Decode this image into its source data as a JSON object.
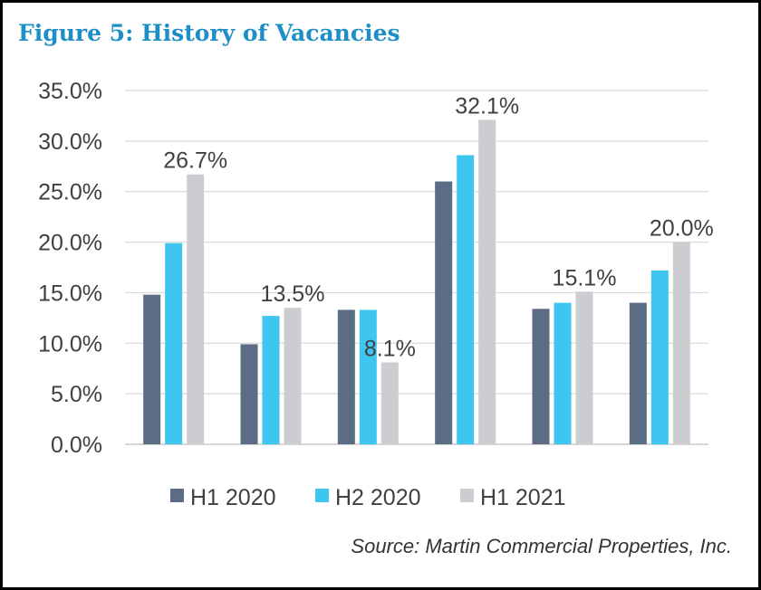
{
  "title": "Figure 5: History of Vacancies",
  "source": "Source: Martin Commercial Properties, Inc.",
  "chart_data": {
    "type": "bar",
    "categories": [
      "",
      "",
      "",
      "",
      "",
      ""
    ],
    "series": [
      {
        "name": "H1 2020",
        "color": "#5c6c85",
        "values": [
          14.8,
          9.9,
          13.3,
          26.0,
          13.4,
          14.0
        ]
      },
      {
        "name": "H2 2020",
        "color": "#3ec6f0",
        "values": [
          19.9,
          12.7,
          13.3,
          28.6,
          14.0,
          17.2
        ]
      },
      {
        "name": "H1 2021",
        "color": "#cbcdd0",
        "values": [
          26.7,
          13.5,
          8.1,
          32.1,
          15.1,
          20.0
        ]
      }
    ],
    "data_labels": [
      "26.7%",
      "13.5%",
      "8.1%",
      "32.1%",
      "15.1%",
      "20.0%"
    ],
    "ylim": [
      0,
      35
    ],
    "yticks": [
      0,
      5,
      10,
      15,
      20,
      25,
      30,
      35
    ],
    "ytick_labels": [
      "0.0%",
      "5.0%",
      "10.0%",
      "15.0%",
      "20.0%",
      "25.0%",
      "30.0%",
      "35.0%"
    ],
    "grid": true,
    "legend_position": "bottom"
  }
}
